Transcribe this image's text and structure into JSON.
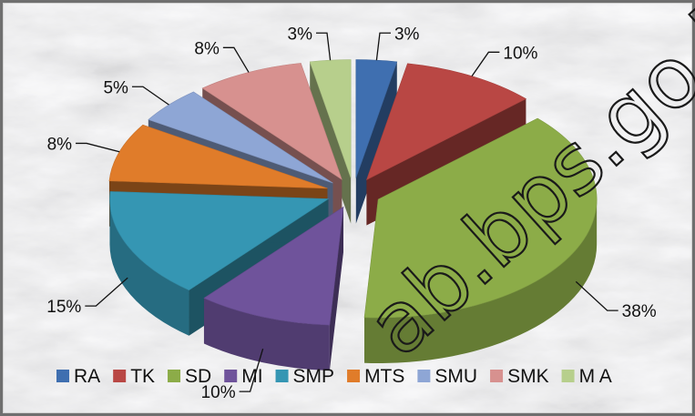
{
  "chart_data": {
    "type": "pie",
    "style": "3d-exploded",
    "categories": [
      "RA",
      "TK",
      "SD",
      "MI",
      "SMP",
      "MTS",
      "SMU",
      "SMK",
      "M A"
    ],
    "values": [
      3,
      10,
      38,
      10,
      15,
      8,
      5,
      8,
      3
    ],
    "data_labels": [
      "3%",
      "10%",
      "38%",
      "10%",
      "15%",
      "8%",
      "5%",
      "8%",
      "3%"
    ],
    "colors": [
      "#3f6fb0",
      "#b94744",
      "#8cac48",
      "#6f539b",
      "#3596b3",
      "#e07c2a",
      "#8ea6d5",
      "#d7918f",
      "#b7cf8c"
    ],
    "legend_position": "bottom",
    "background": "marble-texture",
    "watermark": "ab.bps.go.id"
  }
}
